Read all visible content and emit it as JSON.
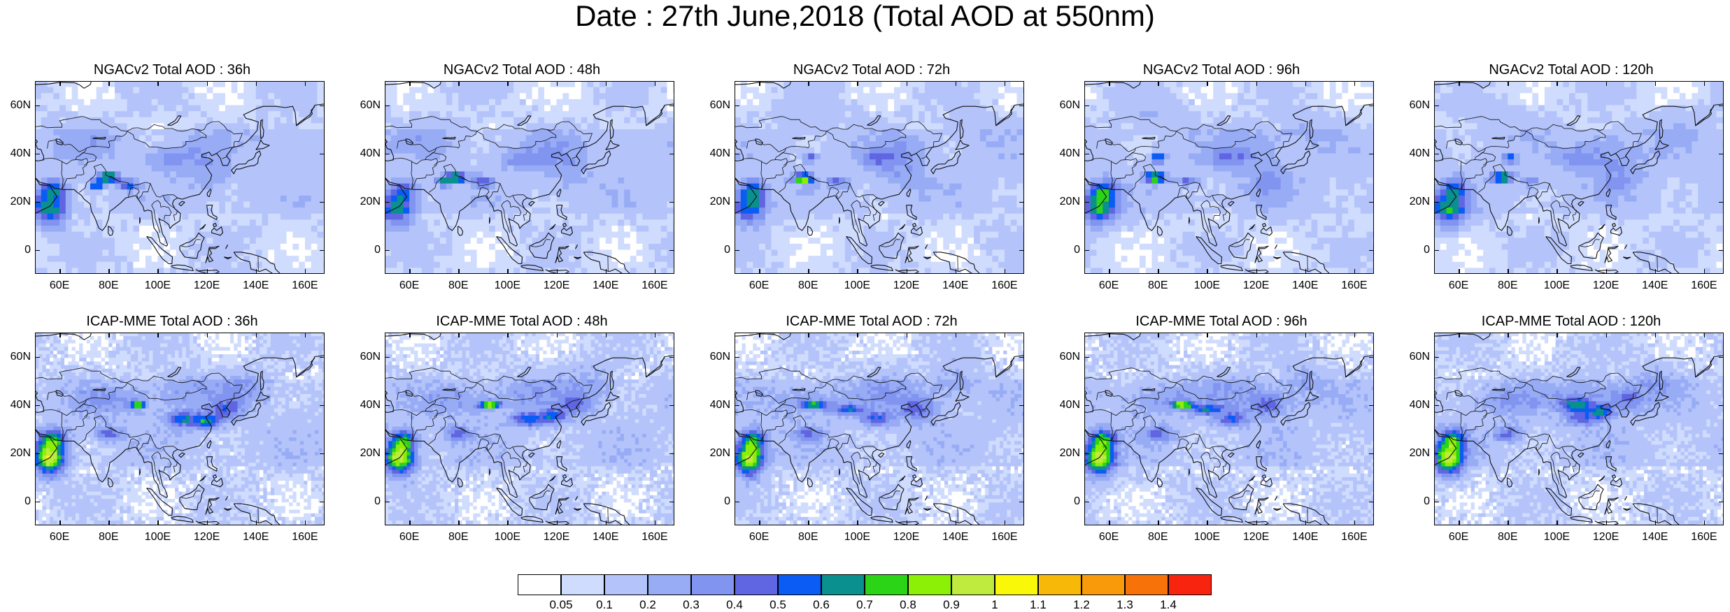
{
  "title": "Date : 27th June,2018 (Total AOD at 550nm)",
  "panels": [
    {
      "title": "NGACv2 Total AOD : 36h",
      "model": "NGAC",
      "pattern": 0
    },
    {
      "title": "NGACv2 Total AOD : 48h",
      "model": "NGAC",
      "pattern": 1
    },
    {
      "title": "NGACv2 Total AOD : 72h",
      "model": "NGAC",
      "pattern": 2
    },
    {
      "title": "NGACv2 Total AOD : 96h",
      "model": "NGAC",
      "pattern": 3
    },
    {
      "title": "NGACv2 Total AOD : 120h",
      "model": "NGAC",
      "pattern": 4
    },
    {
      "title": "ICAP-MME Total AOD : 36h",
      "model": "ICAP",
      "pattern": 0
    },
    {
      "title": "ICAP-MME Total AOD : 48h",
      "model": "ICAP",
      "pattern": 1
    },
    {
      "title": "ICAP-MME Total AOD : 72h",
      "model": "ICAP",
      "pattern": 2
    },
    {
      "title": "ICAP-MME Total AOD : 96h",
      "model": "ICAP",
      "pattern": 3
    },
    {
      "title": "ICAP-MME Total AOD : 120h",
      "model": "ICAP",
      "pattern": 4
    }
  ],
  "lat_labels": [
    "60N",
    "40N",
    "20N",
    "0"
  ],
  "lon_labels": [
    "60E",
    "80E",
    "100E",
    "120E",
    "140E",
    "160E"
  ],
  "lon_range": [
    50,
    168
  ],
  "lat_range": [
    -10,
    70
  ],
  "colorbar": {
    "labels": [
      "0.05",
      "0.1",
      "0.2",
      "0.3",
      "0.4",
      "0.5",
      "0.6",
      "0.7",
      "0.8",
      "0.9",
      "1",
      "1.1",
      "1.2",
      "1.3",
      "1.4"
    ],
    "colors": [
      "#ffffff",
      "#d0dcfe",
      "#b4c4fa",
      "#98acf6",
      "#8094f0",
      "#6066e2",
      "#0a5cf4",
      "#09908f",
      "#2cd418",
      "#8cf006",
      "#beeb3e",
      "#f8f808",
      "#f8b808",
      "#f89a0a",
      "#f8720a",
      "#f82410"
    ]
  }
}
